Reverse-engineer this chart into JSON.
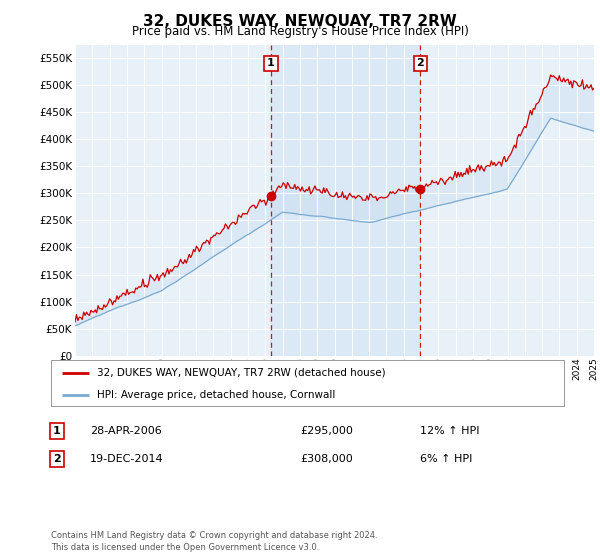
{
  "title": "32, DUKES WAY, NEWQUAY, TR7 2RW",
  "subtitle": "Price paid vs. HM Land Registry's House Price Index (HPI)",
  "ylabel_ticks": [
    "£0",
    "£50K",
    "£100K",
    "£150K",
    "£200K",
    "£250K",
    "£300K",
    "£350K",
    "£400K",
    "£450K",
    "£500K",
    "£550K"
  ],
  "ytick_values": [
    0,
    50000,
    100000,
    150000,
    200000,
    250000,
    300000,
    350000,
    400000,
    450000,
    500000,
    550000
  ],
  "ylim": [
    0,
    575000
  ],
  "year_start": 1995,
  "year_end": 2025,
  "legend_line1": "32, DUKES WAY, NEWQUAY, TR7 2RW (detached house)",
  "legend_line2": "HPI: Average price, detached house, Cornwall",
  "sale1_label": "1",
  "sale1_date": "28-APR-2006",
  "sale1_price": "£295,000",
  "sale1_hpi": "12% ↑ HPI",
  "sale1_year": 2006.33,
  "sale1_value": 295000,
  "sale2_label": "2",
  "sale2_date": "19-DEC-2014",
  "sale2_price": "£308,000",
  "sale2_hpi": "6% ↑ HPI",
  "sale2_year": 2014.97,
  "sale2_value": 308000,
  "hpi_color": "#7aaad0",
  "price_color": "#cc0000",
  "plot_bg": "#e8f0f8",
  "grid_color": "#ffffff",
  "sale_line_color": "#cc0000",
  "fill_color": "#c0d8ee",
  "footnote": "Contains HM Land Registry data © Crown copyright and database right 2024.\nThis data is licensed under the Open Government Licence v3.0."
}
